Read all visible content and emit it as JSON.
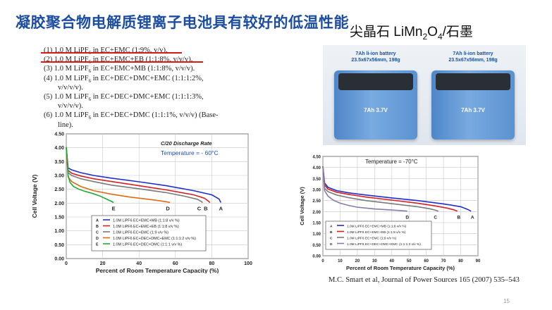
{
  "slide": {
    "title": "凝胶聚合物电解质锂离子电池具有较好的低温性能",
    "subtitle_prefix": "尖晶石 LiMn",
    "subtitle_sub1": "2",
    "subtitle_mid": "O",
    "subtitle_sub2": "4",
    "subtitle_suffix": "/石墨",
    "reference": "M.C. Smart et al, Journal of Power Sources 165 (2007) 535–543",
    "slide_number": "15"
  },
  "electrolytes": [
    {
      "num": "(1)",
      "pre": "1.0 M LiPF",
      "sub": "6",
      "post": " in EC+EMC (1:9%, v/v).",
      "struck": true
    },
    {
      "num": "(2)",
      "pre": "1.0 M LiPF",
      "sub": "6",
      "post": " in EC+EMC+EB (1:1:8%, v/v/v).",
      "struck": true
    },
    {
      "num": "(3)",
      "pre": "1.0 M LiPF",
      "sub": "6",
      "post": " in EC+EMC+MB (1:1:8%, v/v/v).",
      "struck": false
    },
    {
      "num": "(4)",
      "pre": "1.0    M    LiPF",
      "sub": "6",
      "post": "    in    EC+DEC+DMC+EMC    (1:1:1:2%,",
      "struck": false
    },
    {
      "num": "",
      "pre": "v/v/v/v).",
      "sub": "",
      "post": "",
      "struck": false
    },
    {
      "num": "(5)",
      "pre": "1.0    M    LiPF",
      "sub": "6",
      "post": "    in    EC+DEC+DMC+EMC    (1:1:1:3%,",
      "struck": false
    },
    {
      "num": "",
      "pre": "v/v/v/v).",
      "sub": "",
      "post": "",
      "struck": false
    },
    {
      "num": "(6)",
      "pre": "1.0 M LiPF",
      "sub": "6",
      "post": " in EC+DEC+DMC (1:1:1%, v/v/v) (Base-",
      "struck": false
    },
    {
      "num": "",
      "pre": "line).",
      "sub": "",
      "post": "",
      "struck": false
    }
  ],
  "battery": {
    "caption_line1": "7Ah li-ion battery",
    "caption_line2": "23.5x67x56mm, 198g",
    "label": "7Ah 3.7V"
  },
  "colors": {
    "title": "#1c4da1",
    "strike": "#d61a1a",
    "series_A": "#1f2ecf",
    "series_B": "#d42020",
    "series_C": "#7a7a7a",
    "series_D": "#e06a12",
    "series_E": "#22a83a"
  },
  "chart_data": [
    {
      "type": "line",
      "annotation_rate": "C/20 Discharge Rate",
      "annotation_temp": "Temperature = - 60°C",
      "xlabel": "Percent of Room Temperature Capacity (%)",
      "ylabel": "Cell Voltage (V)",
      "xlim": [
        0,
        100
      ],
      "ylim": [
        0,
        4.5
      ],
      "xticks": [
        0,
        20,
        40,
        60,
        80,
        100
      ],
      "yticks": [
        0,
        0.5,
        1.0,
        1.5,
        2.0,
        2.5,
        3.0,
        3.5,
        4.0,
        4.5
      ],
      "ytick_labels": [
        "0.00",
        "0.50",
        "1.00",
        "1.50",
        "2.00",
        "2.50",
        "3.00",
        "3.50",
        "4.00",
        "4.50"
      ],
      "grid": true,
      "legend_position": "bottom",
      "series": [
        {
          "name": "1.0M LiPF6 EC+EMC+MB (1:1:8 v/v %)",
          "label": "A",
          "color": "#1f2ecf",
          "x": [
            0,
            1,
            3,
            8,
            15,
            25,
            40,
            55,
            70,
            80,
            84,
            85
          ],
          "y": [
            4.02,
            3.27,
            3.2,
            3.1,
            3.0,
            2.9,
            2.77,
            2.63,
            2.45,
            2.3,
            2.15,
            2.02
          ]
        },
        {
          "name": "1.0M LiPF6 EC+EMC+EB (1:1:8 v/v %)",
          "label": "B",
          "color": "#d42020",
          "x": [
            0,
            1,
            3,
            8,
            15,
            25,
            40,
            55,
            70,
            76,
            78,
            79
          ],
          "y": [
            4.02,
            3.18,
            3.08,
            2.98,
            2.88,
            2.78,
            2.63,
            2.48,
            2.3,
            2.18,
            2.08,
            2.02
          ]
        },
        {
          "name": "1.0M LiPF6 EC+EMC (1:9 v/v %)",
          "label": "C",
          "color": "#7a7a7a",
          "x": [
            0,
            1,
            3,
            8,
            15,
            25,
            40,
            55,
            65,
            72,
            74,
            75
          ],
          "y": [
            4.02,
            3.1,
            3.0,
            2.88,
            2.78,
            2.65,
            2.52,
            2.38,
            2.25,
            2.14,
            2.07,
            2.02
          ]
        },
        {
          "name": "1.0M LiPF6 EC+DEC+DMC+EMC (1:1:1:2 v/v %)",
          "label": "D",
          "color": "#e06a12",
          "x": [
            0,
            1,
            3,
            8,
            15,
            25,
            35,
            45,
            52,
            56,
            57
          ],
          "y": [
            4.02,
            2.95,
            2.78,
            2.6,
            2.45,
            2.32,
            2.22,
            2.14,
            2.08,
            2.04,
            2.02
          ]
        },
        {
          "name": "1.0M LiPF6 EC+DEC+DMC (1:1:1 v/v %)",
          "label": "E",
          "color": "#22a83a",
          "x": [
            0,
            0.5,
            1,
            2,
            4,
            7,
            10,
            14,
            18,
            22,
            25,
            26
          ],
          "y": [
            4.02,
            3.6,
            3.0,
            2.75,
            2.6,
            2.5,
            2.43,
            2.36,
            2.27,
            2.15,
            2.06,
            2.02
          ]
        }
      ]
    },
    {
      "type": "line",
      "annotation_temp": "Temperature = -70°C",
      "xlabel": "Percent of Room Temperature Capacity (%)",
      "ylabel": "Cell Voltage (V)",
      "xlim": [
        0,
        90
      ],
      "ylim": [
        0,
        4.5
      ],
      "xticks": [
        0,
        10,
        20,
        30,
        40,
        50,
        60,
        70,
        80,
        90
      ],
      "yticks": [
        0,
        0.5,
        1.0,
        1.5,
        2.0,
        2.5,
        3.0,
        3.5,
        4.0,
        4.5
      ],
      "ytick_labels": [
        "0.00",
        "0.50",
        "1.00",
        "1.50",
        "2.00",
        "2.50",
        "3.00",
        "3.50",
        "4.00",
        "4.50"
      ],
      "grid": true,
      "legend_position": "bottom",
      "series": [
        {
          "name": "1.0M LiPF6 EC+EMC+MB (1:1:8 v/v %)",
          "label": "A",
          "color": "#1f2ecf",
          "x": [
            0,
            1,
            3,
            8,
            15,
            25,
            40,
            55,
            70,
            80,
            84,
            86
          ],
          "y": [
            4.05,
            3.3,
            3.1,
            2.95,
            2.85,
            2.75,
            2.62,
            2.5,
            2.35,
            2.22,
            2.1,
            2.02
          ]
        },
        {
          "name": "1.0M LiPF6 EC+EMC+EB (1:1:8 v/v %)",
          "label": "B",
          "color": "#d42020",
          "x": [
            0,
            1,
            3,
            8,
            15,
            25,
            40,
            55,
            65,
            72,
            76,
            78
          ],
          "y": [
            4.05,
            3.2,
            3.02,
            2.88,
            2.78,
            2.66,
            2.52,
            2.38,
            2.26,
            2.16,
            2.08,
            2.02
          ]
        },
        {
          "name": "1.0M LiPF6 EC+EMC (1:9 v/v %)",
          "label": "C",
          "color": "#7a7a7a",
          "x": [
            0,
            1,
            3,
            8,
            15,
            25,
            40,
            55,
            62,
            65,
            67
          ],
          "y": [
            4.05,
            3.05,
            2.9,
            2.75,
            2.63,
            2.5,
            2.36,
            2.22,
            2.13,
            2.07,
            2.02
          ]
        },
        {
          "name": "1.0M LiPF6 EC+DEC+DMC+EMC (1:1:1:2 v/v %)",
          "label": "D",
          "color": "#8a7aa8",
          "x": [
            0,
            1,
            3,
            6,
            10,
            15,
            20,
            30,
            40,
            46,
            49
          ],
          "y": [
            4.05,
            2.95,
            2.7,
            2.52,
            2.38,
            2.28,
            2.2,
            2.12,
            2.07,
            2.04,
            2.02
          ]
        }
      ]
    }
  ]
}
